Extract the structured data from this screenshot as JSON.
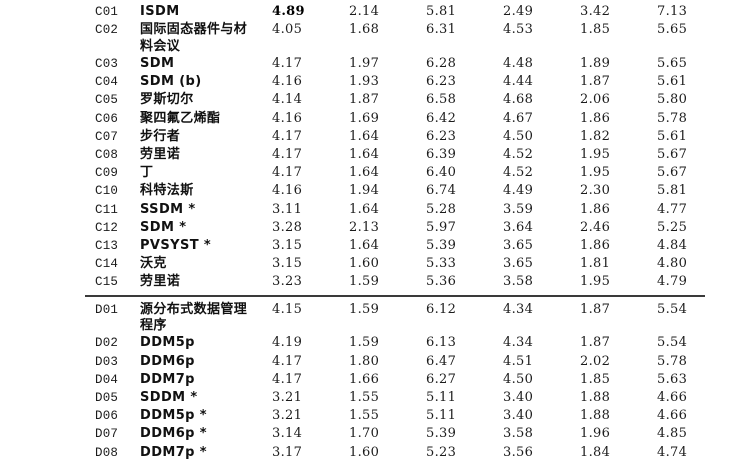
{
  "table": {
    "columns_count": 6,
    "line_color": "#3a3a3a",
    "sections": [
      {
        "id": "C",
        "rows": [
          {
            "code": "C01",
            "name": "ISDM",
            "values": [
              "4.89",
              "2.14",
              "5.81",
              "2.49",
              "3.42",
              "7.13"
            ],
            "bold_value_index": 0
          },
          {
            "code": "C02",
            "name": "国际固态器件与材料会议",
            "values": [
              "4.05",
              "1.68",
              "6.31",
              "4.53",
              "1.85",
              "5.65"
            ]
          },
          {
            "code": "C03",
            "name": "SDM",
            "values": [
              "4.17",
              "1.97",
              "6.28",
              "4.48",
              "1.89",
              "5.65"
            ]
          },
          {
            "code": "C04",
            "name": "SDM (b)",
            "values": [
              "4.16",
              "1.93",
              "6.23",
              "4.44",
              "1.87",
              "5.61"
            ]
          },
          {
            "code": "C05",
            "name": "罗斯切尔",
            "values": [
              "4.14",
              "1.87",
              "6.58",
              "4.68",
              "2.06",
              "5.80"
            ]
          },
          {
            "code": "C06",
            "name": "聚四氟乙烯酯",
            "values": [
              "4.16",
              "1.69",
              "6.42",
              "4.67",
              "1.86",
              "5.78"
            ]
          },
          {
            "code": "C07",
            "name": "步行者",
            "values": [
              "4.17",
              "1.64",
              "6.23",
              "4.50",
              "1.82",
              "5.61"
            ]
          },
          {
            "code": "C08",
            "name": "劳里诺",
            "values": [
              "4.17",
              "1.64",
              "6.39",
              "4.52",
              "1.95",
              "5.67"
            ]
          },
          {
            "code": "C09",
            "name": "丁",
            "values": [
              "4.17",
              "1.64",
              "6.40",
              "4.52",
              "1.95",
              "5.67"
            ]
          },
          {
            "code": "C10",
            "name": "科特法斯",
            "values": [
              "4.16",
              "1.94",
              "6.74",
              "4.49",
              "2.30",
              "5.81"
            ]
          },
          {
            "code": "C11",
            "name": "SSDM *",
            "values": [
              "3.11",
              "1.64",
              "5.28",
              "3.59",
              "1.86",
              "4.77"
            ]
          },
          {
            "code": "C12",
            "name": "SDM *",
            "values": [
              "3.28",
              "2.13",
              "5.97",
              "3.64",
              "2.46",
              "5.25"
            ]
          },
          {
            "code": "C13",
            "name": "PVSYST *",
            "values": [
              "3.15",
              "1.64",
              "5.39",
              "3.65",
              "1.86",
              "4.84"
            ]
          },
          {
            "code": "C14",
            "name": "沃克",
            "values": [
              "3.15",
              "1.60",
              "5.33",
              "3.65",
              "1.81",
              "4.80"
            ]
          },
          {
            "code": "C15",
            "name": "劳里诺",
            "values": [
              "3.23",
              "1.59",
              "5.36",
              "3.58",
              "1.95",
              "4.79"
            ]
          }
        ]
      },
      {
        "id": "D",
        "rows": [
          {
            "code": "D01",
            "name": "源分布式数据管理程序",
            "values": [
              "4.15",
              "1.59",
              "6.12",
              "4.34",
              "1.87",
              "5.54"
            ]
          },
          {
            "code": "D02",
            "name": "DDM5p",
            "values": [
              "4.19",
              "1.59",
              "6.13",
              "4.34",
              "1.87",
              "5.54"
            ]
          },
          {
            "code": "D03",
            "name": "DDM6p",
            "values": [
              "4.17",
              "1.80",
              "6.47",
              "4.51",
              "2.02",
              "5.78"
            ]
          },
          {
            "code": "D04",
            "name": "DDM7p",
            "values": [
              "4.17",
              "1.66",
              "6.27",
              "4.50",
              "1.85",
              "5.63"
            ]
          },
          {
            "code": "D05",
            "name": "SDDM *",
            "values": [
              "3.21",
              "1.55",
              "5.11",
              "3.40",
              "1.88",
              "4.66"
            ]
          },
          {
            "code": "D06",
            "name": "DDM5p *",
            "values": [
              "3.21",
              "1.55",
              "5.11",
              "3.40",
              "1.88",
              "4.66"
            ]
          },
          {
            "code": "D07",
            "name": "DDM6p *",
            "values": [
              "3.14",
              "1.70",
              "5.39",
              "3.58",
              "1.96",
              "4.85"
            ]
          },
          {
            "code": "D08",
            "name": "DDM7p *",
            "values": [
              "3.17",
              "1.60",
              "5.23",
              "3.56",
              "1.84",
              "4.74"
            ]
          }
        ]
      }
    ]
  }
}
